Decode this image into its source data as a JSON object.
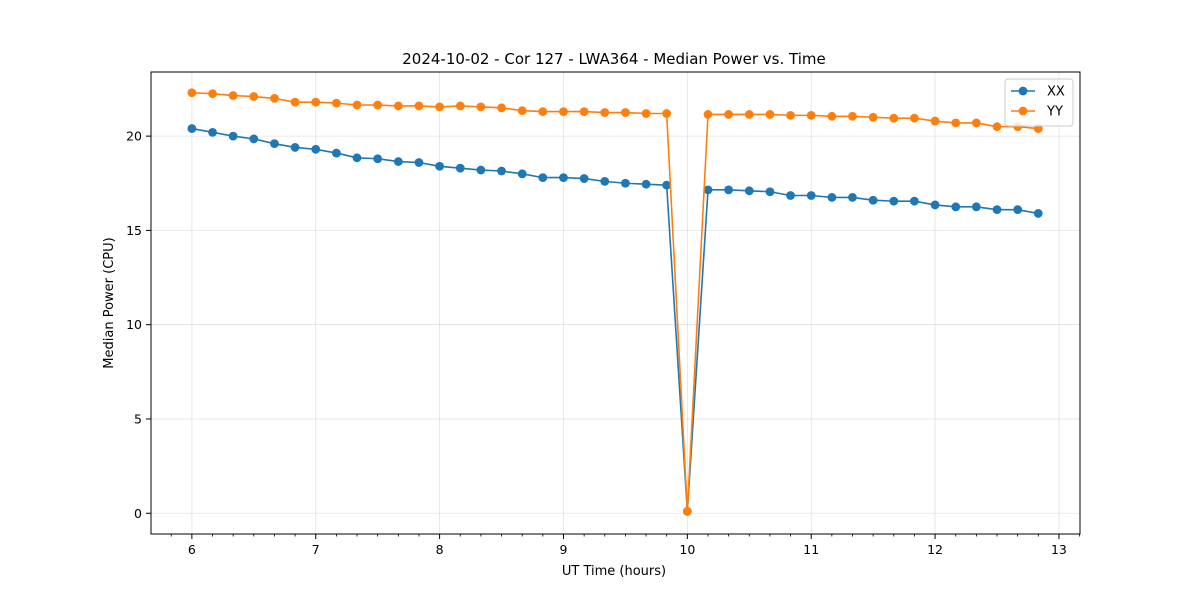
{
  "chart_data": {
    "type": "line",
    "title": "2024-10-02 - Cor 127 - LWA364 - Median Power vs. Time",
    "xlabel": "UT Time (hours)",
    "ylabel": "Median Power (CPU)",
    "xlim": [
      5.67,
      13.17
    ],
    "ylim": [
      -1.1,
      23.4
    ],
    "xticks": [
      6,
      7,
      8,
      9,
      10,
      11,
      12,
      13
    ],
    "yticks": [
      0,
      5,
      10,
      15,
      20
    ],
    "grid": true,
    "legend_position": "top-right",
    "x": [
      6.0,
      6.167,
      6.333,
      6.5,
      6.667,
      6.833,
      7.0,
      7.167,
      7.333,
      7.5,
      7.667,
      7.833,
      8.0,
      8.167,
      8.333,
      8.5,
      8.667,
      8.833,
      9.0,
      9.167,
      9.333,
      9.5,
      9.667,
      9.833,
      10.0,
      10.167,
      10.333,
      10.5,
      10.667,
      10.833,
      11.0,
      11.167,
      11.333,
      11.5,
      11.667,
      11.833,
      12.0,
      12.167,
      12.333,
      12.5,
      12.667,
      12.833
    ],
    "series": [
      {
        "name": "XX",
        "color": "#1f77b4",
        "values": [
          20.4,
          20.2,
          20.0,
          19.85,
          19.6,
          19.4,
          19.3,
          19.1,
          18.85,
          18.8,
          18.65,
          18.6,
          18.4,
          18.3,
          18.2,
          18.15,
          18.0,
          17.8,
          17.8,
          17.75,
          17.6,
          17.5,
          17.45,
          17.4,
          0.1,
          17.15,
          17.15,
          17.1,
          17.05,
          16.85,
          16.85,
          16.75,
          16.75,
          16.6,
          16.55,
          16.55,
          16.35,
          16.25,
          16.25,
          16.1,
          16.1,
          15.9
        ]
      },
      {
        "name": "YY",
        "color": "#ff7f0e",
        "values": [
          22.3,
          22.25,
          22.15,
          22.1,
          22.0,
          21.8,
          21.8,
          21.75,
          21.65,
          21.65,
          21.6,
          21.6,
          21.55,
          21.6,
          21.55,
          21.5,
          21.35,
          21.3,
          21.3,
          21.3,
          21.25,
          21.25,
          21.2,
          21.2,
          0.1,
          21.15,
          21.15,
          21.15,
          21.15,
          21.1,
          21.1,
          21.05,
          21.05,
          21.0,
          20.95,
          20.95,
          20.8,
          20.7,
          20.7,
          20.5,
          20.5,
          20.4
        ]
      }
    ]
  }
}
